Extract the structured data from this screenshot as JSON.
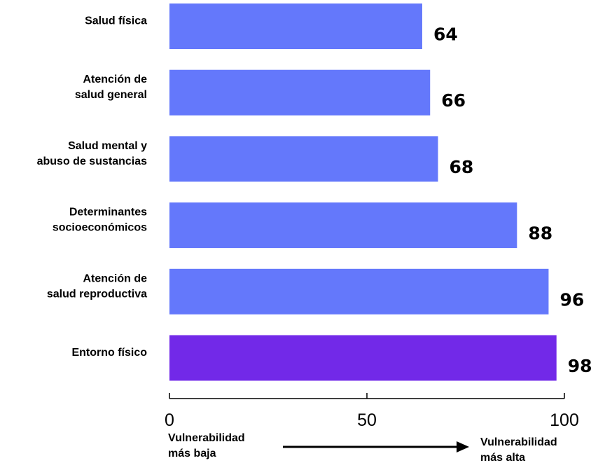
{
  "chart_data": {
    "type": "bar",
    "orientation": "horizontal",
    "categories": [
      [
        "Salud física"
      ],
      [
        "Atención de",
        "salud general"
      ],
      [
        "Salud mental y",
        "abuso de sustancias"
      ],
      [
        "Determinantes",
        "socioeconómicos"
      ],
      [
        "Atención de",
        "salud reproductiva"
      ],
      [
        "Entorno físico"
      ]
    ],
    "values": [
      64,
      66,
      68,
      88,
      96,
      98
    ],
    "bar_colors": [
      "#6478fb",
      "#6478fb",
      "#6478fb",
      "#6478fb",
      "#6478fb",
      "#7229e8"
    ],
    "xlim": [
      0,
      100
    ],
    "xticks": [
      0,
      50,
      100
    ],
    "grid": false,
    "axis_notes": {
      "low": [
        "Vulnerabilidad",
        "más baja"
      ],
      "high": [
        "Vulnerabilidad",
        "más alta"
      ]
    }
  }
}
